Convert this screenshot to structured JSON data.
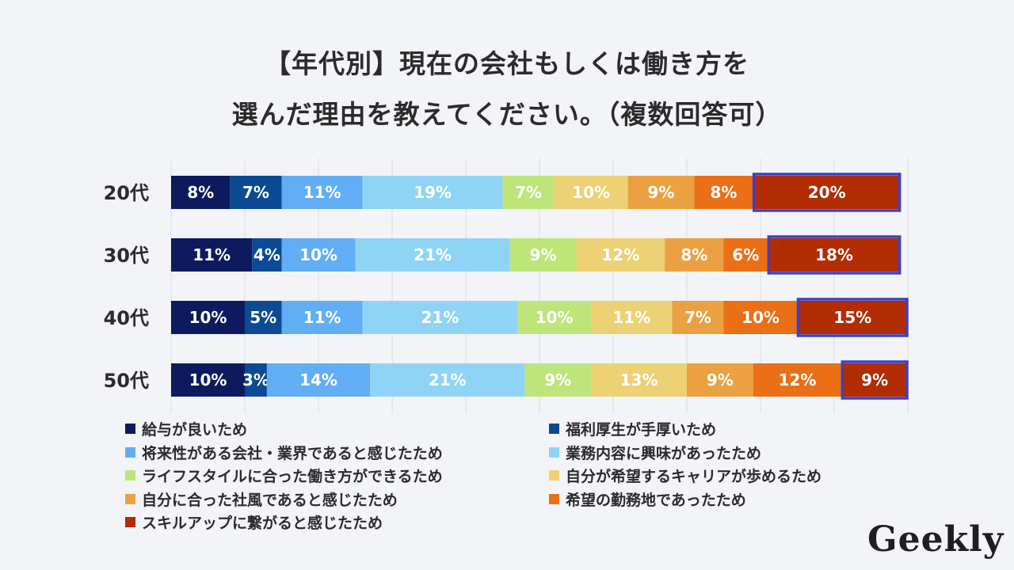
{
  "title": {
    "line1": "【年代別】現在の会社もしくは働き方を",
    "line2": "選んだ理由を教えてください。（複数回答可）"
  },
  "logo": "Geekly",
  "chart_data": {
    "type": "bar",
    "orientation": "horizontal",
    "stacked": true,
    "percent_stacked": true,
    "categories": [
      "20代",
      "30代",
      "40代",
      "50代"
    ],
    "xlim": [
      0,
      100
    ],
    "grid": true,
    "legend_position": "bottom",
    "highlight_series": "スキルアップに繋がると感じたため",
    "series": [
      {
        "name": "給与が良いため",
        "color": "#0d1b5e",
        "values": [
          8,
          11,
          10,
          10
        ]
      },
      {
        "name": "福利厚生が手厚いため",
        "color": "#0c4a94",
        "values": [
          7,
          4,
          5,
          3
        ]
      },
      {
        "name": "将来性がある会社・業界であると感じたため",
        "color": "#62aef4",
        "values": [
          11,
          10,
          11,
          14
        ]
      },
      {
        "name": "業務内容に興味があったため",
        "color": "#8fd4f5",
        "values": [
          19,
          21,
          21,
          21
        ]
      },
      {
        "name": "ライフスタイルに合った働き方ができるため",
        "color": "#bde57a",
        "values": [
          7,
          9,
          10,
          9
        ]
      },
      {
        "name": "自分が希望するキャリアが歩めるため",
        "color": "#ecd175",
        "values": [
          10,
          12,
          11,
          13
        ]
      },
      {
        "name": "自分に合った社風であると感じたため",
        "color": "#eba141",
        "values": [
          9,
          8,
          7,
          9
        ]
      },
      {
        "name": "希望の勤務地であったため",
        "color": "#ea6f17",
        "values": [
          8,
          6,
          10,
          12
        ]
      },
      {
        "name": "スキルアップに繋がると感じたため",
        "color": "#b22c04",
        "values": [
          20,
          18,
          15,
          9
        ]
      }
    ]
  }
}
